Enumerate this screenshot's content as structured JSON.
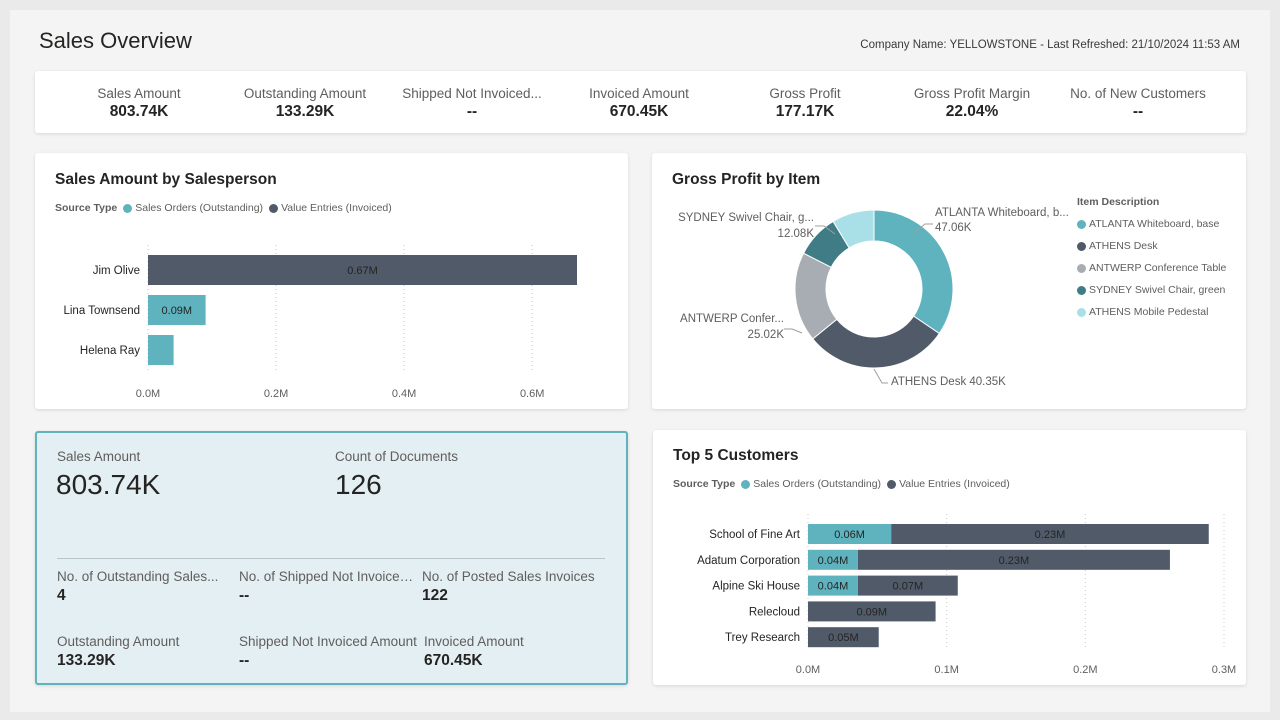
{
  "page": {
    "title": "Sales Overview",
    "company_line": "Company Name: YELLOWSTONE - Last Refreshed: 21/10/2024 11:53 AM"
  },
  "colors": {
    "teal": "#5fb3bf",
    "slate": "#505a69",
    "grey": "#a8adb3",
    "dark_teal": "#3f7c86",
    "light_teal": "#a9dfe6"
  },
  "kpis": [
    {
      "label": "Sales Amount",
      "value": "803.74K"
    },
    {
      "label": "Outstanding Amount",
      "value": "133.29K"
    },
    {
      "label": "Shipped Not Invoiced...",
      "value": "--"
    },
    {
      "label": "Invoiced Amount",
      "value": "670.45K"
    },
    {
      "label": "Gross Profit",
      "value": "177.17K"
    },
    {
      "label": "Gross Profit Margin",
      "value": "22.04%"
    },
    {
      "label": "No. of New Customers",
      "value": "--"
    }
  ],
  "salesperson_chart": {
    "title": "Sales Amount by Salesperson",
    "legend_title": "Source Type",
    "legend": [
      "Sales Orders (Outstanding)",
      "Value Entries (Invoiced)"
    ]
  },
  "gross_profit_chart": {
    "title": "Gross Profit by Item",
    "legend_title": "Item Description",
    "legend": [
      "ATLANTA Whiteboard, base",
      "ATHENS Desk",
      "ANTWERP Conference Table",
      "SYDNEY Swivel Chair, green",
      "ATHENS Mobile Pedestal"
    ],
    "callouts": {
      "atlanta_name": "ATLANTA Whiteboard, b...",
      "atlanta_value": "47.06K",
      "sydney_name": "SYDNEY Swivel Chair, g...",
      "sydney_value": "12.08K",
      "antwerp_name": "ANTWERP Confer...",
      "antwerp_value": "25.02K",
      "athens": "ATHENS Desk 40.35K"
    }
  },
  "detail": {
    "sales_amount_label": "Sales Amount",
    "sales_amount_value": "803.74K",
    "count_docs_label": "Count of Documents",
    "count_docs_value": "126",
    "items": [
      {
        "label": "No. of Outstanding Sales...",
        "value": "4"
      },
      {
        "label": "No. of Shipped Not Invoiced...",
        "value": "--"
      },
      {
        "label": "No. of Posted Sales Invoices",
        "value": "122"
      },
      {
        "label": "Outstanding Amount",
        "value": "133.29K"
      },
      {
        "label": "Shipped Not Invoiced Amount",
        "value": "--"
      },
      {
        "label": "Invoiced Amount",
        "value": "670.45K"
      }
    ]
  },
  "customers_chart": {
    "title": "Top 5 Customers",
    "legend_title": "Source Type",
    "legend": [
      "Sales Orders (Outstanding)",
      "Value Entries (Invoiced)"
    ]
  },
  "chart_data": [
    {
      "type": "bar",
      "orientation": "horizontal",
      "stacked": true,
      "title": "Sales Amount by Salesperson",
      "categories": [
        "Jim Olive",
        "Lina Townsend",
        "Helena Ray"
      ],
      "series": [
        {
          "name": "Sales Orders (Outstanding)",
          "values": [
            0,
            0.09,
            0.04
          ],
          "labels": [
            "",
            "0.09M",
            ""
          ]
        },
        {
          "name": "Value Entries (Invoiced)",
          "values": [
            0.67,
            0,
            0
          ],
          "labels": [
            "0.67M",
            "",
            ""
          ]
        }
      ],
      "xlim": [
        0,
        0.67
      ],
      "xticks": [
        "0.0M",
        "0.2M",
        "0.4M",
        "0.6M"
      ],
      "xtick_values": [
        0,
        0.2,
        0.4,
        0.6
      ],
      "grid": true
    },
    {
      "type": "pie",
      "donut": true,
      "title": "Gross Profit by Item",
      "labels": [
        "ATLANTA Whiteboard, base",
        "ATHENS Desk",
        "ANTWERP Conference Table",
        "SYDNEY Swivel Chair, green",
        "ATHENS Mobile Pedestal"
      ],
      "values": [
        47.06,
        40.35,
        25.02,
        12.08,
        11.8
      ]
    },
    {
      "type": "bar",
      "orientation": "horizontal",
      "stacked": true,
      "title": "Top 5 Customers",
      "categories": [
        "School of Fine Art",
        "Adatum Corporation",
        "Alpine Ski House",
        "Relecloud",
        "Trey Research"
      ],
      "series": [
        {
          "name": "Sales Orders (Outstanding)",
          "values": [
            0.06,
            0.036,
            0.036,
            0,
            0
          ],
          "labels": [
            "0.06M",
            "0.04M",
            "0.04M",
            "",
            ""
          ]
        },
        {
          "name": "Value Entries (Invoiced)",
          "values": [
            0.229,
            0.225,
            0.072,
            0.092,
            0.051
          ],
          "labels": [
            "0.23M",
            "0.23M",
            "0.07M",
            "0.09M",
            "0.05M"
          ]
        }
      ],
      "xlim": [
        0,
        0.3
      ],
      "xticks": [
        "0.0M",
        "0.1M",
        "0.2M",
        "0.3M"
      ],
      "xtick_values": [
        0,
        0.1,
        0.2,
        0.3
      ],
      "grid": true
    }
  ]
}
